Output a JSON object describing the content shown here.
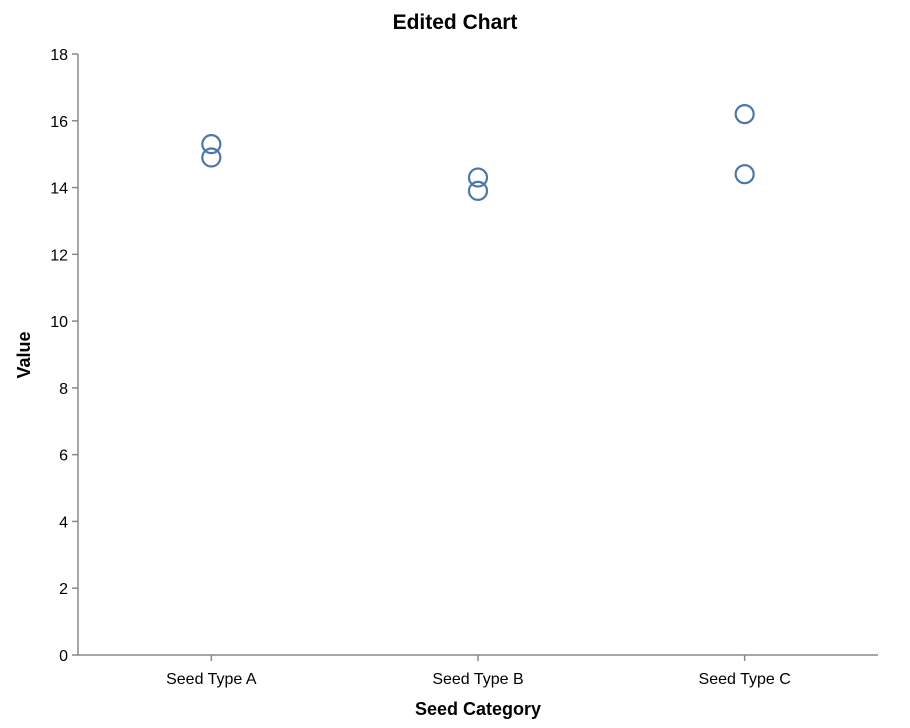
{
  "chart_data": {
    "type": "scatter",
    "title": "Edited Chart",
    "xlabel": "Seed Category",
    "ylabel": "Value",
    "categories": [
      "Seed Type A",
      "Seed Type B",
      "Seed Type C"
    ],
    "ylim": [
      0,
      18
    ],
    "yticks": [
      0,
      2,
      4,
      6,
      8,
      10,
      12,
      14,
      16,
      18
    ],
    "grid": false,
    "point_color": "#4c78a8",
    "series": [
      {
        "points": [
          {
            "x": "Seed Type A",
            "y": 15.3
          },
          {
            "x": "Seed Type A",
            "y": 14.9
          },
          {
            "x": "Seed Type B",
            "y": 14.3
          },
          {
            "x": "Seed Type B",
            "y": 13.9
          },
          {
            "x": "Seed Type C",
            "y": 16.2
          },
          {
            "x": "Seed Type C",
            "y": 14.4
          }
        ]
      }
    ]
  }
}
